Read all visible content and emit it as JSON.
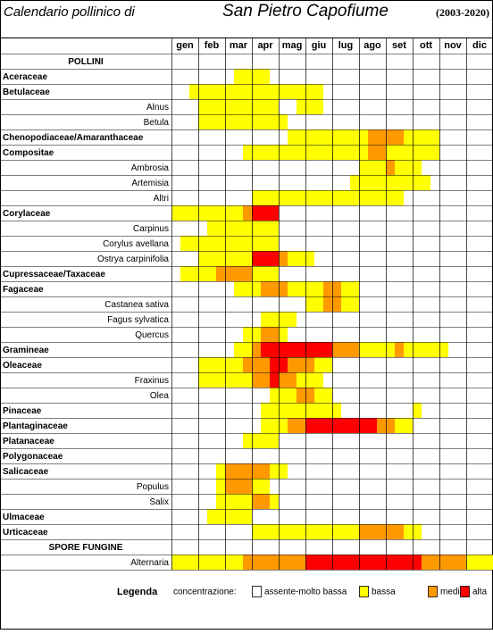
{
  "header": {
    "subtitle": "Calendario pollinico di",
    "title": "San Pietro Capofiume",
    "period": "(2003-2020)"
  },
  "months": [
    "gen",
    "feb",
    "mar",
    "apr",
    "mag",
    "giu",
    "lug",
    "ago",
    "set",
    "ott",
    "nov",
    "dic"
  ],
  "levels": [
    {
      "label": "assente-molto bassa",
      "color": "#ffffff"
    },
    {
      "label": "bassa",
      "color": "#ffff00"
    },
    {
      "label": "media",
      "color": "#ff9900"
    },
    {
      "label": "alta",
      "color": "#ff0000"
    }
  ],
  "rows": [
    {
      "label": "POLLINI",
      "style": "section",
      "runs": [
        [
          0,
          36
        ]
      ]
    },
    {
      "label": "Aceraceae",
      "style": "family",
      "runs": [
        [
          0,
          7
        ],
        [
          1,
          4
        ],
        [
          0,
          25
        ]
      ]
    },
    {
      "label": "Betulaceae",
      "style": "family",
      "runs": [
        [
          0,
          2
        ],
        [
          1,
          15
        ],
        [
          0,
          19
        ]
      ]
    },
    {
      "label": "Alnus",
      "style": "species",
      "runs": [
        [
          0,
          3
        ],
        [
          1,
          9
        ],
        [
          0,
          2
        ],
        [
          1,
          3
        ],
        [
          0,
          19
        ]
      ]
    },
    {
      "label": "Betula",
      "style": "species",
      "runs": [
        [
          0,
          3
        ],
        [
          1,
          10
        ],
        [
          0,
          23
        ]
      ]
    },
    {
      "label": "Chenopodiaceae/Amaranthaceae",
      "style": "family",
      "runs": [
        [
          0,
          13
        ],
        [
          1,
          9
        ],
        [
          2,
          4
        ],
        [
          1,
          4
        ],
        [
          0,
          6
        ]
      ]
    },
    {
      "label": "Compositae",
      "style": "family",
      "runs": [
        [
          0,
          8
        ],
        [
          1,
          14
        ],
        [
          2,
          2
        ],
        [
          1,
          6
        ],
        [
          0,
          6
        ]
      ]
    },
    {
      "label": "Ambrosia",
      "style": "species",
      "runs": [
        [
          0,
          21
        ],
        [
          1,
          3
        ],
        [
          2,
          1
        ],
        [
          1,
          3
        ],
        [
          0,
          8
        ]
      ]
    },
    {
      "label": "Artemisia",
      "style": "species",
      "runs": [
        [
          0,
          20
        ],
        [
          1,
          9
        ],
        [
          0,
          7
        ]
      ]
    },
    {
      "label": "Altri",
      "style": "species",
      "runs": [
        [
          0,
          9
        ],
        [
          1,
          17
        ],
        [
          0,
          10
        ]
      ]
    },
    {
      "label": "Corylaceae",
      "style": "family",
      "runs": [
        [
          1,
          8
        ],
        [
          2,
          1
        ],
        [
          3,
          3
        ],
        [
          0,
          24
        ]
      ]
    },
    {
      "label": "Carpinus",
      "style": "species",
      "runs": [
        [
          0,
          4
        ],
        [
          1,
          8
        ],
        [
          0,
          24
        ]
      ]
    },
    {
      "label": "Corylus avellana",
      "style": "species",
      "runs": [
        [
          0,
          1
        ],
        [
          1,
          11
        ],
        [
          0,
          24
        ]
      ]
    },
    {
      "label": "Ostrya carpinifolia",
      "style": "species",
      "runs": [
        [
          0,
          3
        ],
        [
          1,
          6
        ],
        [
          3,
          3
        ],
        [
          2,
          1
        ],
        [
          1,
          3
        ],
        [
          0,
          20
        ]
      ]
    },
    {
      "label": "Cupressaceae/Taxaceae",
      "style": "family",
      "runs": [
        [
          0,
          1
        ],
        [
          1,
          4
        ],
        [
          2,
          4
        ],
        [
          1,
          3
        ],
        [
          0,
          24
        ]
      ]
    },
    {
      "label": "Fagaceae",
      "style": "family",
      "runs": [
        [
          0,
          7
        ],
        [
          1,
          3
        ],
        [
          2,
          3
        ],
        [
          1,
          4
        ],
        [
          2,
          2
        ],
        [
          1,
          2
        ],
        [
          0,
          15
        ]
      ]
    },
    {
      "label": "Castanea sativa",
      "style": "species",
      "runs": [
        [
          0,
          15
        ],
        [
          1,
          2
        ],
        [
          2,
          2
        ],
        [
          1,
          2
        ],
        [
          0,
          15
        ]
      ]
    },
    {
      "label": "Fagus sylvatica",
      "style": "species",
      "runs": [
        [
          0,
          10
        ],
        [
          1,
          4
        ],
        [
          0,
          22
        ]
      ]
    },
    {
      "label": "Quercus",
      "style": "species",
      "runs": [
        [
          0,
          8
        ],
        [
          1,
          2
        ],
        [
          2,
          2
        ],
        [
          1,
          1
        ],
        [
          0,
          23
        ]
      ]
    },
    {
      "label": "Gramineae",
      "style": "family",
      "runs": [
        [
          0,
          7
        ],
        [
          1,
          2
        ],
        [
          2,
          1
        ],
        [
          3,
          8
        ],
        [
          2,
          3
        ],
        [
          1,
          4
        ],
        [
          2,
          1
        ],
        [
          1,
          5
        ],
        [
          0,
          5
        ]
      ]
    },
    {
      "label": "Oleaceae",
      "style": "family",
      "runs": [
        [
          0,
          3
        ],
        [
          1,
          5
        ],
        [
          2,
          3
        ],
        [
          3,
          2
        ],
        [
          2,
          3
        ],
        [
          1,
          2
        ],
        [
          0,
          18
        ]
      ]
    },
    {
      "label": "Fraxinus",
      "style": "species",
      "runs": [
        [
          0,
          3
        ],
        [
          1,
          6
        ],
        [
          2,
          2
        ],
        [
          3,
          1
        ],
        [
          2,
          2
        ],
        [
          1,
          3
        ],
        [
          0,
          19
        ]
      ]
    },
    {
      "label": "Olea",
      "style": "species",
      "runs": [
        [
          0,
          11
        ],
        [
          1,
          3
        ],
        [
          2,
          2
        ],
        [
          1,
          2
        ],
        [
          0,
          18
        ]
      ]
    },
    {
      "label": "Pinaceae",
      "style": "family",
      "runs": [
        [
          0,
          10
        ],
        [
          1,
          9
        ],
        [
          0,
          8
        ],
        [
          1,
          1
        ],
        [
          0,
          8
        ]
      ]
    },
    {
      "label": "Plantaginaceae",
      "style": "family",
      "runs": [
        [
          0,
          10
        ],
        [
          1,
          3
        ],
        [
          2,
          2
        ],
        [
          3,
          8
        ],
        [
          2,
          2
        ],
        [
          1,
          2
        ],
        [
          0,
          9
        ]
      ]
    },
    {
      "label": "Platanaceae",
      "style": "family",
      "runs": [
        [
          0,
          8
        ],
        [
          1,
          4
        ],
        [
          0,
          24
        ]
      ]
    },
    {
      "label": "Polygonaceae",
      "style": "family",
      "runs": [
        [
          0,
          36
        ]
      ]
    },
    {
      "label": "Salicaceae",
      "style": "family",
      "runs": [
        [
          0,
          5
        ],
        [
          1,
          1
        ],
        [
          2,
          5
        ],
        [
          1,
          2
        ],
        [
          0,
          23
        ]
      ]
    },
    {
      "label": "Populus",
      "style": "species",
      "runs": [
        [
          0,
          5
        ],
        [
          1,
          1
        ],
        [
          2,
          3
        ],
        [
          1,
          2
        ],
        [
          0,
          25
        ]
      ]
    },
    {
      "label": "Salix",
      "style": "species",
      "runs": [
        [
          0,
          5
        ],
        [
          1,
          4
        ],
        [
          2,
          2
        ],
        [
          1,
          1
        ],
        [
          0,
          24
        ]
      ]
    },
    {
      "label": "Ulmaceae",
      "style": "family",
      "runs": [
        [
          0,
          4
        ],
        [
          1,
          5
        ],
        [
          0,
          27
        ]
      ]
    },
    {
      "label": "Urticaceae",
      "style": "family",
      "runs": [
        [
          0,
          9
        ],
        [
          1,
          12
        ],
        [
          2,
          5
        ],
        [
          1,
          2
        ],
        [
          0,
          8
        ]
      ]
    },
    {
      "label": "SPORE FUNGINE",
      "style": "section",
      "runs": [
        [
          0,
          36
        ]
      ]
    },
    {
      "label": "Alternaria",
      "style": "species",
      "runs": [
        [
          1,
          8
        ],
        [
          2,
          7
        ],
        [
          3,
          13
        ],
        [
          2,
          5
        ],
        [
          1,
          3
        ]
      ]
    }
  ],
  "legend": {
    "title": "Legenda",
    "caption": "concentrazione:"
  }
}
